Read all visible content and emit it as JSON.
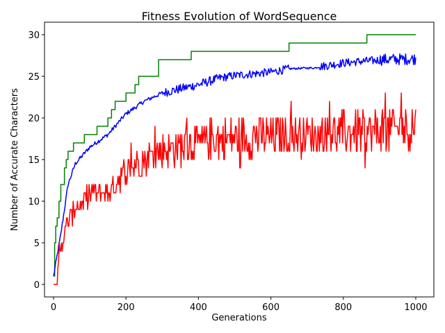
{
  "chart_data": {
    "type": "line",
    "title": "Fitness Evolution of WordSequence",
    "xlabel": "Generations",
    "ylabel": "Number of Accurate Characters",
    "xlim": [
      -25,
      1050
    ],
    "ylim": [
      -1.5,
      31.5
    ],
    "xticks": [
      0,
      200,
      400,
      600,
      800,
      1000
    ],
    "yticks": [
      0,
      5,
      10,
      15,
      20,
      25,
      30
    ],
    "grid": false,
    "legend": "none",
    "series": [
      {
        "color": "#008000",
        "style": "step",
        "x": [
          0,
          3,
          6,
          10,
          15,
          20,
          30,
          35,
          40,
          50,
          55,
          80,
          85,
          115,
          120,
          150,
          160,
          170,
          185,
          200,
          225,
          230,
          235,
          290,
          380,
          650,
          865,
          1000
        ],
        "y": [
          1,
          5,
          7,
          8,
          10,
          12,
          14,
          15,
          16,
          16,
          17,
          17,
          18,
          18,
          19,
          20,
          21,
          22,
          22,
          23,
          24,
          24,
          25,
          27,
          28,
          29,
          30,
          30
        ]
      },
      {
        "color": "#0000ff",
        "style": "noisy",
        "noise": [
          0,
          0.25,
          0.35,
          0.45,
          0.55,
          0.55,
          0.55,
          0.5,
          0.6,
          0.2,
          0.2,
          0.55,
          0.2,
          0.5
        ],
        "x": [
          0,
          20,
          40,
          60,
          100,
          150,
          200,
          250,
          300,
          400,
          460,
          500,
          600,
          650,
          700,
          720,
          740,
          800,
          850,
          890,
          900,
          1000
        ],
        "y": [
          1,
          6,
          12,
          14.5,
          16.5,
          18,
          20.5,
          22,
          23,
          24,
          24.8,
          25.1,
          25.5,
          25.9,
          26,
          26,
          26.2,
          26.6,
          26.8,
          26.9,
          27,
          27.1
        ]
      },
      {
        "color": "#ff0000",
        "style": "noisy",
        "x": [
          0,
          10,
          15,
          20,
          30,
          40,
          60,
          80,
          100,
          150,
          200,
          250,
          300,
          350,
          400,
          450,
          500,
          600,
          700,
          800,
          900,
          1000
        ],
        "y": [
          0,
          0,
          4,
          5,
          6,
          7.5,
          9.5,
          9.5,
          11,
          11,
          13.5,
          15,
          16,
          16.5,
          17,
          17.5,
          17.5,
          17.8,
          18,
          18.2,
          18.5,
          19
        ],
        "amplitude": [
          0,
          0,
          0.7,
          1,
          1,
          1.2,
          1.3,
          1.3,
          1.3,
          1.5,
          1.7,
          1.8,
          2,
          2.2,
          2.3,
          2.5,
          2.5,
          2.5,
          2.5,
          2.5,
          2.7,
          3
        ]
      }
    ]
  }
}
